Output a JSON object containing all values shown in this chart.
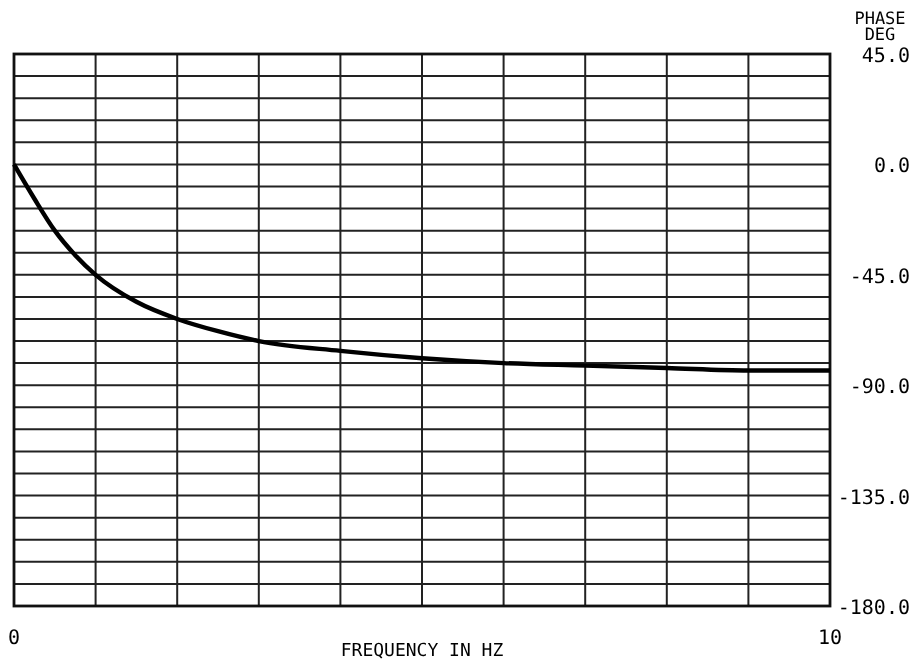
{
  "chart_data": {
    "type": "line",
    "xlabel": "FREQUENCY IN HZ",
    "ylabel": "PHASE DEG",
    "xlim": [
      0,
      10
    ],
    "ylim": [
      -180,
      45
    ],
    "xticks": [
      0,
      {
        "value": 1,
        "label": null
      },
      {
        "value": 2,
        "label": null
      },
      {
        "value": 3,
        "label": null
      },
      {
        "value": 4,
        "label": null
      },
      {
        "value": 5,
        "label": null
      },
      {
        "value": 6,
        "label": null
      },
      {
        "value": 7,
        "label": null
      },
      {
        "value": 8,
        "label": null
      },
      {
        "value": 9,
        "label": null
      },
      10
    ],
    "yticks": [
      {
        "value": 45,
        "label": "45.0"
      },
      {
        "value": 36,
        "label": null
      },
      {
        "value": 27,
        "label": null
      },
      {
        "value": 18,
        "label": null
      },
      {
        "value": 9,
        "label": null
      },
      {
        "value": 0,
        "label": "0.0"
      },
      {
        "value": -9,
        "label": null
      },
      {
        "value": -18,
        "label": null
      },
      {
        "value": -27,
        "label": null
      },
      {
        "value": -36,
        "label": null
      },
      {
        "value": -45,
        "label": "-45.0"
      },
      {
        "value": -54,
        "label": null
      },
      {
        "value": -63,
        "label": null
      },
      {
        "value": -72,
        "label": null
      },
      {
        "value": -81,
        "label": null
      },
      {
        "value": -90,
        "label": "-90.0"
      },
      {
        "value": -99,
        "label": null
      },
      {
        "value": -108,
        "label": null
      },
      {
        "value": -117,
        "label": null
      },
      {
        "value": -126,
        "label": null
      },
      {
        "value": -135,
        "label": "-135.0"
      },
      {
        "value": -144,
        "label": null
      },
      {
        "value": -153,
        "label": null
      },
      {
        "value": -162,
        "label": null
      },
      {
        "value": -171,
        "label": null
      },
      {
        "value": -180,
        "label": "-180.0"
      }
    ],
    "grid": true,
    "marker": "none",
    "line_style": "solid",
    "x": [
      0,
      0.25,
      0.5,
      0.75,
      1,
      1.5,
      2,
      2.5,
      3,
      4,
      5,
      6,
      7,
      8,
      9,
      10
    ],
    "series": [
      {
        "color": "#000000",
        "values": [
          0,
          -14,
          -27,
          -37,
          -45,
          -56,
          -63,
          -68,
          -72,
          -76,
          -79,
          -81,
          -82,
          -83,
          -84,
          -84
        ]
      }
    ]
  }
}
